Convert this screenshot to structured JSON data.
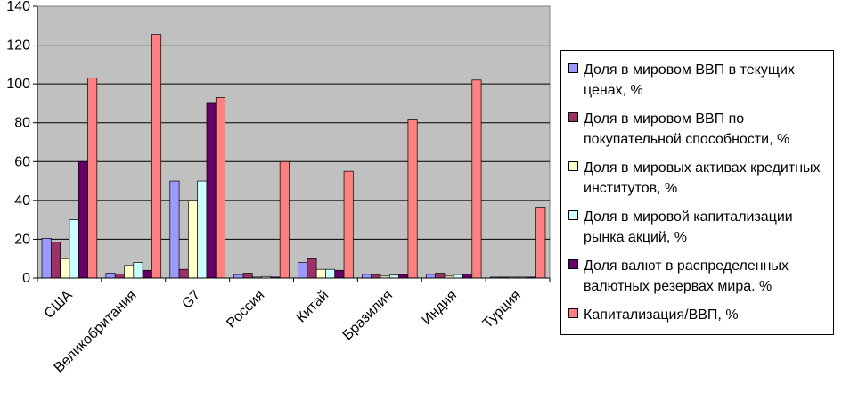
{
  "chart_data": {
    "type": "bar",
    "categories": [
      "США",
      "Великобритания",
      "G7",
      "Россия",
      "Китай",
      "Бразилия",
      "Индия",
      "Турция"
    ],
    "ylim": [
      0,
      140
    ],
    "yticks": [
      0,
      20,
      40,
      60,
      80,
      100,
      120,
      140
    ],
    "grid": true,
    "legend_position": "right",
    "series": [
      {
        "name": "Доля в мировом ВВП в текущих ценах, %",
        "color": "#9999ff",
        "values": [
          20.5,
          2.5,
          50,
          1.8,
          8,
          1.9,
          1.9,
          0.5
        ]
      },
      {
        "name": "Доля в мировом ВВП по покупательной способности, %",
        "color": "#993366",
        "values": [
          18.5,
          2,
          4.5,
          2.5,
          10,
          1.8,
          2.5,
          0.5
        ]
      },
      {
        "name": "Доля в мировых активах кредитных институтов, %",
        "color": "#ffffcc",
        "values": [
          10,
          6.5,
          40,
          0.5,
          4.5,
          1,
          1,
          0.5
        ]
      },
      {
        "name": "Доля в мировой капитализации рынка акций, %",
        "color": "#ccffff",
        "values": [
          30,
          8,
          50,
          0.8,
          4.5,
          1.5,
          1.8,
          0.5
        ]
      },
      {
        "name": "Доля валют в распределенных валютных резервах мира. %",
        "color": "#660066",
        "values": [
          60,
          4,
          90,
          0.5,
          4,
          1.8,
          2,
          0.5
        ]
      },
      {
        "name": "Капитализация/ВВП, %",
        "color": "#ff8080",
        "values": [
          103,
          125.5,
          93,
          60,
          55,
          81.5,
          102,
          36.5
        ]
      }
    ]
  }
}
